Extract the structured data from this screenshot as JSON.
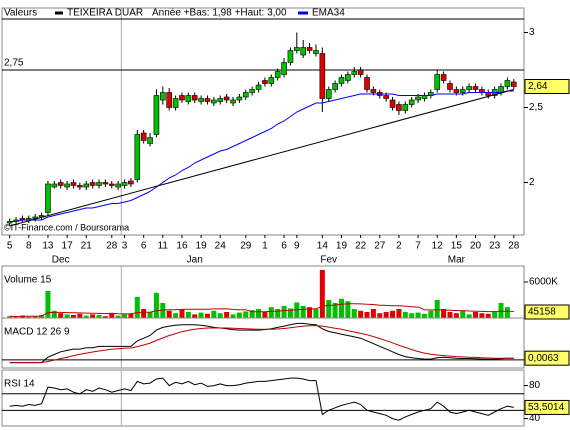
{
  "chart_data": [
    {
      "type": "candlestick",
      "label": "Valeurs",
      "subtitle": "Année +Bas: 1,98 +Haut: 3,00",
      "xlim": [
        -1.2,
        80.6
      ],
      "ylim": [
        1.65,
        3.09
      ],
      "yticks": [
        3,
        {
          "value": 2.5,
          "label": "2,5"
        },
        2
      ],
      "xticks": [
        {
          "value": 0,
          "label": "5"
        },
        {
          "value": 3,
          "label": "8"
        },
        {
          "value": 6,
          "label": "13"
        },
        {
          "value": 9,
          "label": "17"
        },
        {
          "value": 12,
          "label": "21"
        },
        {
          "value": 16,
          "label": "28"
        },
        {
          "value": 18,
          "label": "3"
        },
        {
          "value": 21,
          "label": "6"
        },
        {
          "value": 24,
          "label": "11"
        },
        {
          "value": 27,
          "label": "16"
        },
        {
          "value": 30,
          "label": "19"
        },
        {
          "value": 33,
          "label": "24"
        },
        {
          "value": 37,
          "label": "29"
        },
        {
          "value": 40,
          "label": "1"
        },
        {
          "value": 43,
          "label": "6"
        },
        {
          "value": 45,
          "label": "9"
        },
        {
          "value": 49,
          "label": "14"
        },
        {
          "value": 52,
          "label": "19"
        },
        {
          "value": 55,
          "label": "22"
        },
        {
          "value": 58,
          "label": "27"
        },
        {
          "value": 61,
          "label": "2"
        },
        {
          "value": 64,
          "label": "7"
        },
        {
          "value": 67,
          "label": "12"
        },
        {
          "value": 70,
          "label": "15"
        },
        {
          "value": 73,
          "label": "20"
        },
        {
          "value": 76,
          "label": "23"
        },
        {
          "value": 79,
          "label": "28"
        }
      ],
      "months": [
        {
          "value": 8,
          "label": "Dec"
        },
        {
          "value": 29,
          "label": "Jan"
        },
        {
          "value": 50,
          "label": "Fev"
        },
        {
          "value": 70,
          "label": "Mar"
        }
      ],
      "up_color": "#00c000",
      "down_color": "#e00000",
      "series": [
        {
          "name": "TEIXEIRA DUAR",
          "color": "#000000",
          "open": [
            1.73,
            1.74,
            1.76,
            1.75,
            1.76,
            1.77,
            1.8,
            1.97,
            2.0,
            1.97,
            2.0,
            1.98,
            1.97,
            2.0,
            1.98,
            2.0,
            1.99,
            1.97,
            1.98,
            2.01,
            2.02,
            2.33,
            2.26,
            2.32,
            2.55,
            2.6,
            2.5,
            2.58,
            2.54,
            2.58,
            2.54,
            2.56,
            2.53,
            2.54,
            2.57,
            2.53,
            2.55,
            2.57,
            2.6,
            2.62,
            2.68,
            2.66,
            2.7,
            2.72,
            2.8,
            2.88,
            2.85,
            2.9,
            2.86,
            2.86,
            2.56,
            2.62,
            2.66,
            2.68,
            2.72,
            2.75,
            2.7,
            2.62,
            2.6,
            2.58,
            2.55,
            2.52,
            2.48,
            2.52,
            2.55,
            2.56,
            2.58,
            2.62,
            2.72,
            2.66,
            2.62,
            2.6,
            2.62,
            2.64,
            2.62,
            2.6,
            2.58,
            2.6,
            2.64,
            2.67
          ],
          "high": [
            1.76,
            1.77,
            1.78,
            1.78,
            1.79,
            1.8,
            2.01,
            2.01,
            2.02,
            2.01,
            2.02,
            2.0,
            2.01,
            2.02,
            2.02,
            2.02,
            2.01,
            2.01,
            2.02,
            2.03,
            2.35,
            2.35,
            2.33,
            2.62,
            2.64,
            2.63,
            2.58,
            2.6,
            2.6,
            2.6,
            2.58,
            2.58,
            2.57,
            2.58,
            2.59,
            2.57,
            2.59,
            2.62,
            2.64,
            2.67,
            2.7,
            2.72,
            2.76,
            2.83,
            2.9,
            3.0,
            2.95,
            2.93,
            2.92,
            2.9,
            2.64,
            2.68,
            2.72,
            2.74,
            2.77,
            2.77,
            2.72,
            2.64,
            2.62,
            2.6,
            2.57,
            2.54,
            2.54,
            2.57,
            2.59,
            2.6,
            2.62,
            2.75,
            2.74,
            2.68,
            2.64,
            2.64,
            2.66,
            2.66,
            2.64,
            2.62,
            2.64,
            2.66,
            2.7,
            2.69
          ],
          "low": [
            1.71,
            1.72,
            1.73,
            1.73,
            1.74,
            1.75,
            1.78,
            1.96,
            1.96,
            1.95,
            1.96,
            1.95,
            1.95,
            1.96,
            1.96,
            1.97,
            1.96,
            1.95,
            1.96,
            1.97,
            2.0,
            2.26,
            2.24,
            2.3,
            2.52,
            2.48,
            2.48,
            2.53,
            2.52,
            2.53,
            2.52,
            2.52,
            2.51,
            2.52,
            2.53,
            2.51,
            2.53,
            2.55,
            2.58,
            2.6,
            2.64,
            2.64,
            2.68,
            2.7,
            2.78,
            2.86,
            2.83,
            2.86,
            2.84,
            2.47,
            2.54,
            2.6,
            2.64,
            2.66,
            2.7,
            2.7,
            2.6,
            2.58,
            2.56,
            2.54,
            2.48,
            2.45,
            2.46,
            2.5,
            2.53,
            2.54,
            2.56,
            2.6,
            2.66,
            2.6,
            2.58,
            2.58,
            2.6,
            2.6,
            2.58,
            2.56,
            2.56,
            2.58,
            2.62,
            2.62
          ],
          "close": [
            1.74,
            1.75,
            1.75,
            1.76,
            1.77,
            1.78,
            1.99,
            1.99,
            1.98,
            1.99,
            1.98,
            1.97,
            1.99,
            1.98,
            2.0,
            1.99,
            1.98,
            1.99,
            2.0,
            1.99,
            2.32,
            2.28,
            2.3,
            2.58,
            2.6,
            2.5,
            2.56,
            2.55,
            2.58,
            2.55,
            2.56,
            2.54,
            2.55,
            2.56,
            2.55,
            2.55,
            2.57,
            2.6,
            2.62,
            2.65,
            2.66,
            2.7,
            2.74,
            2.8,
            2.88,
            2.9,
            2.9,
            2.88,
            2.88,
            2.56,
            2.62,
            2.66,
            2.7,
            2.72,
            2.74,
            2.72,
            2.62,
            2.6,
            2.58,
            2.56,
            2.5,
            2.48,
            2.52,
            2.55,
            2.57,
            2.58,
            2.6,
            2.72,
            2.68,
            2.62,
            2.6,
            2.62,
            2.64,
            2.62,
            2.6,
            2.58,
            2.62,
            2.64,
            2.68,
            2.64
          ]
        },
        {
          "name": "EMA34",
          "color": "#0000ff",
          "values": [
            1.74,
            1.74,
            1.75,
            1.75,
            1.75,
            1.75,
            1.77,
            1.78,
            1.79,
            1.8,
            1.81,
            1.82,
            1.83,
            1.83,
            1.84,
            1.85,
            1.86,
            1.86,
            1.87,
            1.88,
            1.9,
            1.92,
            1.94,
            1.97,
            2.0,
            2.03,
            2.05,
            2.08,
            2.1,
            2.13,
            2.15,
            2.17,
            2.19,
            2.21,
            2.22,
            2.24,
            2.26,
            2.28,
            2.3,
            2.32,
            2.34,
            2.36,
            2.39,
            2.41,
            2.44,
            2.47,
            2.49,
            2.51,
            2.53,
            2.53,
            2.54,
            2.55,
            2.56,
            2.57,
            2.58,
            2.59,
            2.59,
            2.59,
            2.59,
            2.59,
            2.59,
            2.58,
            2.58,
            2.58,
            2.58,
            2.58,
            2.58,
            2.59,
            2.59,
            2.59,
            2.59,
            2.59,
            2.6,
            2.6,
            2.6,
            2.6,
            2.6,
            2.6,
            2.61,
            2.61
          ]
        }
      ],
      "trendline": {
        "x": [
          0,
          79
        ],
        "values": [
          1.71,
          2.62
        ]
      },
      "hline": {
        "value": 2.75,
        "label": "2,75"
      },
      "current": {
        "value": 2.64,
        "label": "2,64"
      },
      "copyright": "©IT-Finance.com / Boursorama"
    },
    {
      "type": "bar",
      "title": "Volume 15",
      "ylim": [
        0,
        8000000
      ],
      "yticks": [
        {
          "value": 6000000,
          "label": "6000K"
        }
      ],
      "series": [
        {
          "values": [
            300000,
            200000,
            400000,
            200000,
            300000,
            500000,
            4500000,
            1200000,
            800000,
            600000,
            500000,
            700000,
            400000,
            600000,
            500000,
            300000,
            800000,
            400000,
            600000,
            700000,
            3500000,
            1500000,
            1000000,
            4200000,
            2500000,
            1200000,
            800000,
            1500000,
            1000000,
            600000,
            900000,
            700000,
            1200000,
            800000,
            1000000,
            600000,
            900000,
            1100000,
            1300000,
            1500000,
            1000000,
            1800000,
            1500000,
            2000000,
            1600000,
            2600000,
            2000000,
            1800000,
            1500000,
            8000000,
            3000000,
            2500000,
            3200000,
            2800000,
            1500000,
            1200000,
            1000000,
            1500000,
            800000,
            1000000,
            1200000,
            1500000,
            1000000,
            800000,
            900000,
            700000,
            1200000,
            3000000,
            1500000,
            1000000,
            800000,
            1200000,
            600000,
            1000000,
            800000,
            700000,
            1000000,
            2500000,
            1800000,
            45158
          ]
        },
        {
          "color": "#c00000",
          "values": [
            300000,
            250000,
            300000,
            280000,
            280000,
            320000,
            900000,
            940000,
            930000,
            900000,
            860000,
            850000,
            810000,
            800000,
            770000,
            740000,
            780000,
            700000,
            690000,
            700000,
            900000,
            950000,
            960000,
            1200000,
            1330000,
            1380000,
            1380000,
            1440000,
            1460000,
            1450000,
            1470000,
            1470000,
            1510000,
            1510000,
            1540000,
            1420000,
            1380000,
            1390000,
            1040000,
            1050000,
            1050000,
            1110000,
            1150000,
            1230000,
            1260000,
            1360000,
            1440000,
            1500000,
            1530000,
            1970000,
            2100000,
            2150000,
            2280000,
            2380000,
            2380000,
            2350000,
            2290000,
            2250000,
            2130000,
            2100000,
            2050000,
            2050000,
            1980000,
            1880000,
            1820000,
            1380000,
            1330000,
            1380000,
            1330000,
            1290000,
            1240000,
            1240000,
            1160000,
            1140000,
            1100000,
            1070000,
            1090000,
            1140000,
            1150000,
            1080000
          ]
        }
      ],
      "current": {
        "value": 45158,
        "label": "45158"
      }
    },
    {
      "type": "line",
      "title": "MACD 12 26 9",
      "ylim": [
        -0.03,
        0.14
      ],
      "levels": [
        0
      ],
      "series": [
        {
          "color": "#000000",
          "values": [
            -0.01,
            -0.01,
            -0.01,
            -0.01,
            -0.01,
            -0.01,
            0.01,
            0.02,
            0.03,
            0.035,
            0.04,
            0.04,
            0.045,
            0.045,
            0.05,
            0.05,
            0.05,
            0.05,
            0.05,
            0.05,
            0.07,
            0.08,
            0.09,
            0.11,
            0.12,
            0.125,
            0.128,
            0.13,
            0.13,
            0.13,
            0.128,
            0.125,
            0.12,
            0.118,
            0.115,
            0.112,
            0.11,
            0.11,
            0.11,
            0.11,
            0.112,
            0.115,
            0.12,
            0.125,
            0.13,
            0.135,
            0.135,
            0.132,
            0.13,
            0.115,
            0.105,
            0.1,
            0.095,
            0.09,
            0.085,
            0.08,
            0.07,
            0.06,
            0.05,
            0.04,
            0.03,
            0.02,
            0.012,
            0.008,
            0.005,
            0.003,
            0.003,
            0.008,
            0.01,
            0.008,
            0.006,
            0.005,
            0.005,
            0.004,
            0.003,
            0.002,
            0.003,
            0.004,
            0.006,
            0.0063
          ]
        },
        {
          "color": "#c00000",
          "values": [
            -0.01,
            -0.01,
            -0.01,
            -0.01,
            -0.01,
            -0.01,
            -0.006,
            -0.001,
            0.005,
            0.01,
            0.016,
            0.021,
            0.025,
            0.029,
            0.033,
            0.036,
            0.039,
            0.041,
            0.043,
            0.044,
            0.049,
            0.055,
            0.062,
            0.072,
            0.081,
            0.09,
            0.097,
            0.104,
            0.109,
            0.113,
            0.116,
            0.118,
            0.118,
            0.118,
            0.118,
            0.117,
            0.116,
            0.115,
            0.114,
            0.113,
            0.113,
            0.113,
            0.114,
            0.116,
            0.119,
            0.122,
            0.125,
            0.126,
            0.127,
            0.125,
            0.121,
            0.117,
            0.113,
            0.108,
            0.103,
            0.098,
            0.093,
            0.086,
            0.079,
            0.071,
            0.063,
            0.054,
            0.046,
            0.038,
            0.031,
            0.025,
            0.021,
            0.018,
            0.016,
            0.014,
            0.012,
            0.011,
            0.01,
            0.009,
            0.008,
            0.007,
            0.006,
            0.006,
            0.006,
            0.006
          ]
        }
      ],
      "current": {
        "value": 0.0063,
        "label": "0,0063"
      }
    },
    {
      "type": "line",
      "title": "RSI 14",
      "ylim": [
        31,
        94
      ],
      "yticks": [
        80,
        40
      ],
      "levels": [
        70,
        50
      ],
      "series": [
        {
          "color": "#000000",
          "values": [
            55,
            56,
            55,
            57,
            56,
            58,
            78,
            77,
            75,
            76,
            72,
            70,
            75,
            73,
            77,
            75,
            72,
            74,
            76,
            74,
            85,
            82,
            83,
            88,
            89,
            80,
            84,
            82,
            85,
            81,
            83,
            79,
            80,
            82,
            80,
            80,
            81,
            83,
            84,
            85,
            85,
            86,
            87,
            88,
            89,
            89,
            88,
            86,
            86,
            45,
            50,
            53,
            56,
            58,
            60,
            57,
            50,
            48,
            46,
            44,
            40,
            38,
            42,
            45,
            48,
            50,
            52,
            60,
            55,
            48,
            46,
            48,
            50,
            48,
            46,
            44,
            48,
            52,
            55,
            53.5014
          ]
        }
      ],
      "current": {
        "value": 53.5014,
        "label": "53,5014"
      }
    }
  ]
}
